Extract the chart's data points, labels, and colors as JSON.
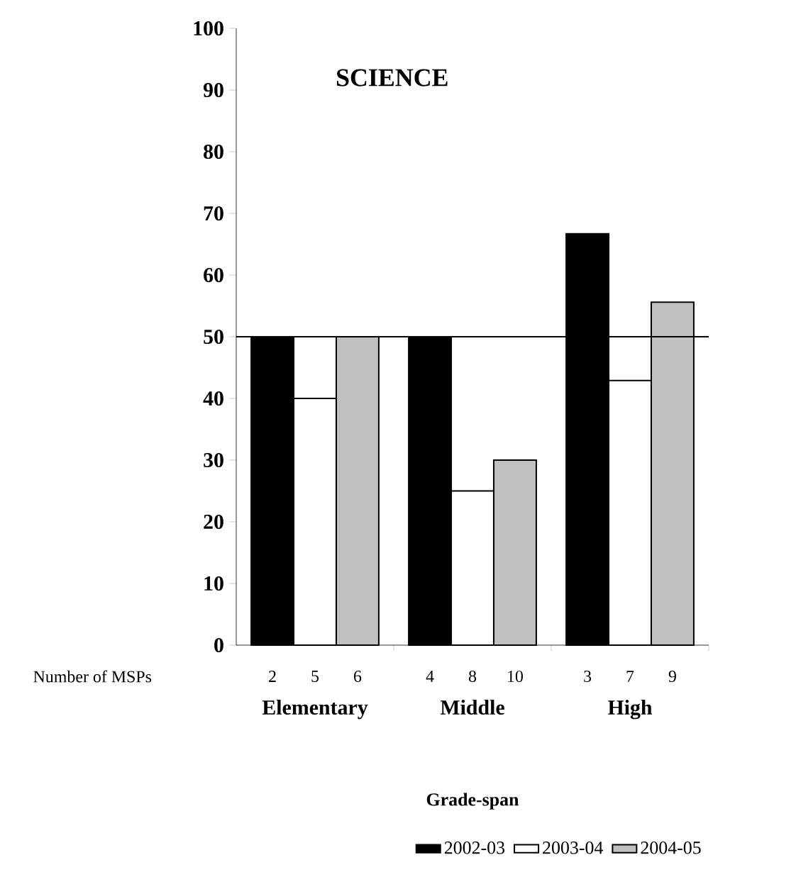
{
  "chart_data": {
    "type": "bar",
    "title": "SCIENCE",
    "xlabel": "Grade-span",
    "categories": [
      "Elementary",
      "Middle",
      "High"
    ],
    "series": [
      {
        "name": "2002-03",
        "color": "#000000",
        "values": [
          50,
          50,
          66.7
        ]
      },
      {
        "name": "2003-04",
        "color": "#ffffff",
        "values": [
          40,
          25,
          42.9
        ]
      },
      {
        "name": "2004-05",
        "color": "#c0c0c0",
        "values": [
          50,
          30,
          55.6
        ]
      }
    ],
    "ylim": [
      0,
      100
    ],
    "yticks": [
      0,
      10,
      20,
      30,
      40,
      50,
      60,
      70,
      80,
      90,
      100
    ],
    "ref_lines": [
      {
        "axis": "y",
        "value": 50,
        "color": "#000000"
      }
    ],
    "annotations": [
      "Number of MSPs",
      "2",
      "5",
      "6",
      "4",
      "8",
      "10",
      "3",
      "7",
      "9"
    ],
    "legend": "bottom",
    "grid": false
  }
}
